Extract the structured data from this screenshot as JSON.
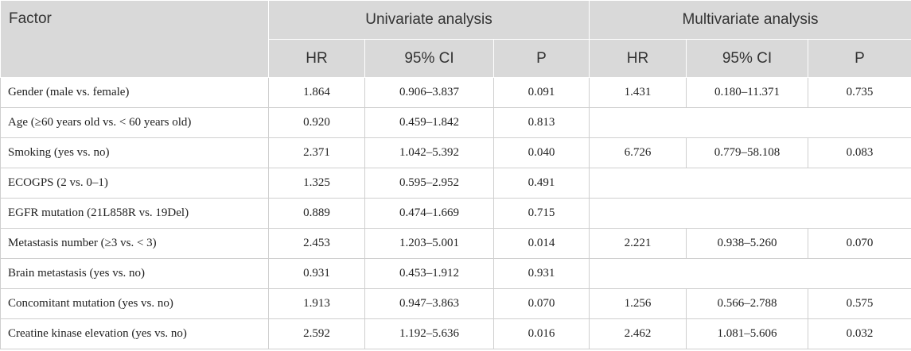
{
  "table": {
    "header": {
      "factor": "Factor",
      "univariate": "Univariate analysis",
      "multivariate": "Multivariate analysis",
      "sub": [
        "HR",
        "95% CI",
        "P",
        "HR",
        "95% CI",
        "P"
      ]
    },
    "rows": [
      {
        "factor": "Gender (male vs. female)",
        "u_hr": "1.864",
        "u_ci": "0.906–3.837",
        "u_p": "0.091",
        "m_hr": "1.431",
        "m_ci": "0.180–11.371",
        "m_p": "0.735"
      },
      {
        "factor": "Age (≥60 years old vs. < 60 years old)",
        "u_hr": "0.920",
        "u_ci": "0.459–1.842",
        "u_p": "0.813",
        "m_hr": "",
        "m_ci": "",
        "m_p": ""
      },
      {
        "factor": "Smoking (yes vs. no)",
        "u_hr": "2.371",
        "u_ci": "1.042–5.392",
        "u_p": "0.040",
        "m_hr": "6.726",
        "m_ci": "0.779–58.108",
        "m_p": "0.083"
      },
      {
        "factor": "ECOGPS (2 vs. 0–1)",
        "u_hr": "1.325",
        "u_ci": "0.595–2.952",
        "u_p": "0.491",
        "m_hr": "",
        "m_ci": "",
        "m_p": ""
      },
      {
        "factor": "EGFR mutation (21L858R vs. 19Del)",
        "u_hr": "0.889",
        "u_ci": "0.474–1.669",
        "u_p": "0.715",
        "m_hr": "",
        "m_ci": "",
        "m_p": ""
      },
      {
        "factor": "Metastasis number (≥3 vs. < 3)",
        "u_hr": "2.453",
        "u_ci": "1.203–5.001",
        "u_p": "0.014",
        "m_hr": "2.221",
        "m_ci": "0.938–5.260",
        "m_p": "0.070"
      },
      {
        "factor": "Brain metastasis (yes vs. no)",
        "u_hr": "0.931",
        "u_ci": "0.453–1.912",
        "u_p": "0.931",
        "m_hr": "",
        "m_ci": "",
        "m_p": ""
      },
      {
        "factor": "Concomitant mutation (yes vs. no)",
        "u_hr": "1.913",
        "u_ci": "0.947–3.863",
        "u_p": "0.070",
        "m_hr": "1.256",
        "m_ci": "0.566–2.788",
        "m_p": "0.575"
      },
      {
        "factor": "Creatine kinase elevation (yes vs. no)",
        "u_hr": "2.592",
        "u_ci": "1.192–5.636",
        "u_p": "0.016",
        "m_hr": "2.462",
        "m_ci": "1.081–5.606",
        "m_p": "0.032"
      }
    ]
  }
}
